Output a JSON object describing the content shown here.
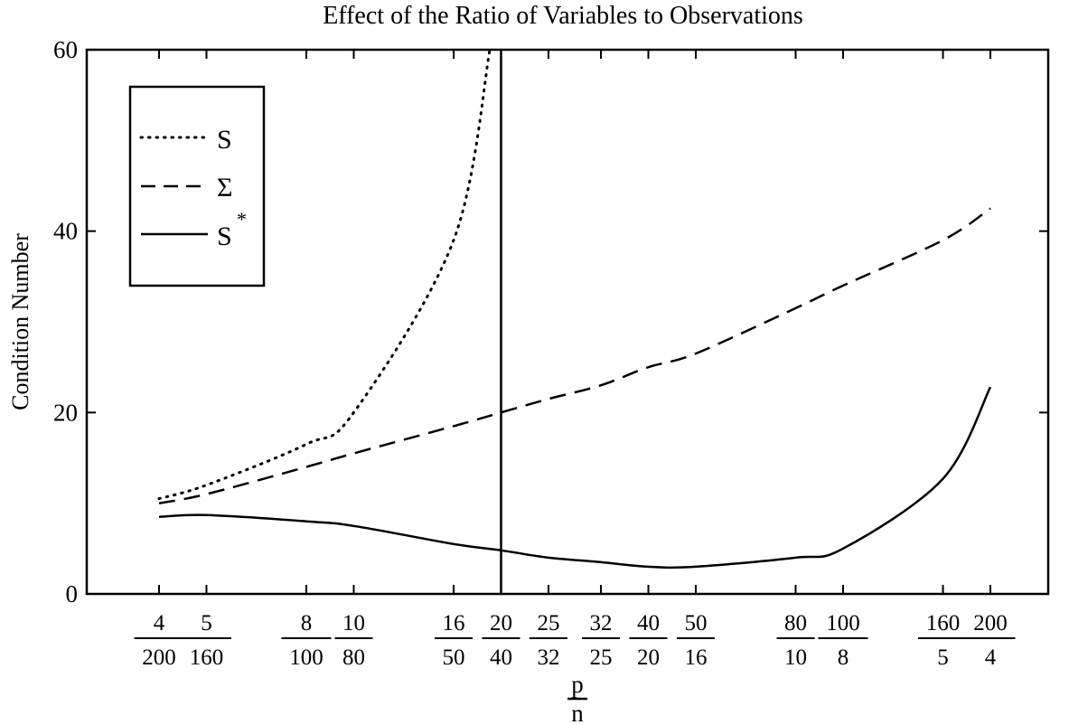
{
  "chart_data": {
    "type": "line",
    "title": "Effect of the Ratio of Variables to Observations",
    "ylabel": "Condition Number",
    "xlabel": {
      "numerator": "p",
      "denominator": "n"
    },
    "ylim": [
      0,
      60
    ],
    "yticks": [
      "0",
      "20",
      "40",
      "60"
    ],
    "x_categories": [
      {
        "num": "4",
        "den": "200"
      },
      {
        "num": "5",
        "den": "160"
      },
      {
        "num": "8",
        "den": "100"
      },
      {
        "num": "10",
        "den": "80"
      },
      {
        "num": "16",
        "den": "50"
      },
      {
        "num": "20",
        "den": "40"
      },
      {
        "num": "25",
        "den": "32"
      },
      {
        "num": "32",
        "den": "25"
      },
      {
        "num": "40",
        "den": "20"
      },
      {
        "num": "50",
        "den": "16"
      },
      {
        "num": "80",
        "den": "10"
      },
      {
        "num": "100",
        "den": "8"
      },
      {
        "num": "160",
        "den": "5"
      },
      {
        "num": "200",
        "den": "4"
      }
    ],
    "x_ratio": [
      0.02,
      0.03125,
      0.08,
      0.125,
      0.32,
      0.5,
      0.78125,
      1.28,
      2,
      3.125,
      8,
      12.5,
      32,
      50
    ],
    "xscale": "log",
    "vertical_line_at": 0.5,
    "grid": false,
    "legend_position": "top-left",
    "series": [
      {
        "name": "S",
        "style": "dotted",
        "x": [
          0.02,
          0.03125,
          0.08,
          0.125,
          0.32,
          0.45
        ],
        "y": [
          10.5,
          12,
          16.5,
          20,
          39,
          60
        ]
      },
      {
        "name": "Σ",
        "style": "dashed",
        "x": [
          0.02,
          0.03125,
          0.08,
          0.125,
          0.32,
          0.5,
          0.78125,
          1.28,
          2,
          3.125,
          8,
          12.5,
          32,
          50
        ],
        "y": [
          10,
          11,
          14,
          15.5,
          18.5,
          20,
          21.5,
          23,
          25,
          26.5,
          31.5,
          34,
          39,
          42.5
        ]
      },
      {
        "name": "S",
        "name_superscript": "*",
        "style": "solid",
        "x": [
          0.02,
          0.03125,
          0.08,
          0.125,
          0.32,
          0.5,
          0.78125,
          1.28,
          2,
          3.125,
          8,
          12.5,
          32,
          50
        ],
        "y": [
          8.5,
          8.7,
          8.0,
          7.5,
          5.5,
          4.8,
          4.0,
          3.5,
          3.0,
          3.0,
          4.0,
          5.0,
          12.7,
          22.8
        ]
      }
    ]
  }
}
